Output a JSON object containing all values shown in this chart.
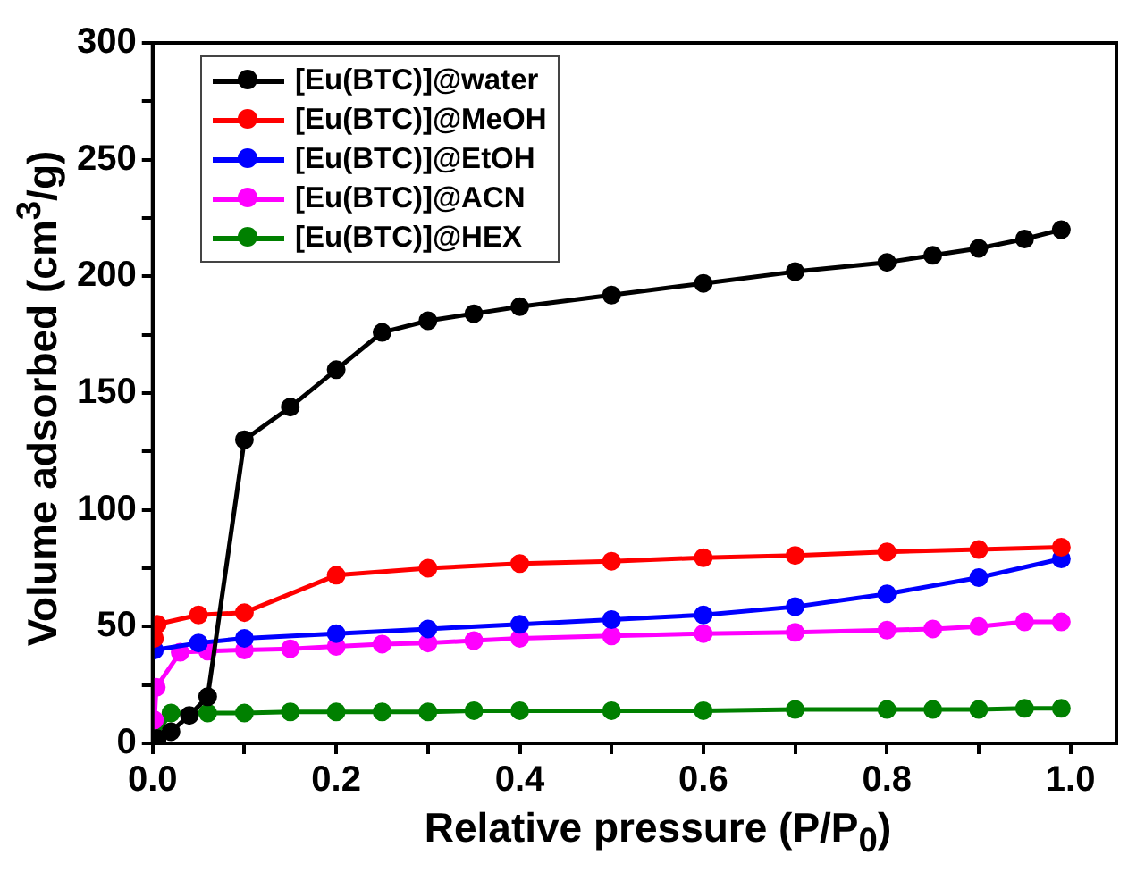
{
  "chart_data": {
    "type": "line",
    "xlabel": "Relative pressure (P/P$_{0}$)",
    "ylabel": "Volume adsorbed (cm$^{3}$/g)",
    "xlim": [
      0,
      1.05
    ],
    "ylim": [
      0,
      300
    ],
    "xticks": [
      {
        "value": 0,
        "label": "0.0"
      },
      {
        "value": 0.1,
        "label": null
      },
      {
        "value": 0.2,
        "label": "0.2"
      },
      {
        "value": 0.3,
        "label": null
      },
      {
        "value": 0.4,
        "label": "0.4"
      },
      {
        "value": 0.5,
        "label": null
      },
      {
        "value": 0.6,
        "label": "0.6"
      },
      {
        "value": 0.7,
        "label": null
      },
      {
        "value": 0.8,
        "label": "0.8"
      },
      {
        "value": 0.9,
        "label": null
      },
      {
        "value": 1,
        "label": "1.0"
      }
    ],
    "yticks": [
      0,
      {
        "value": 25,
        "label": null
      },
      50,
      {
        "value": 75,
        "label": null
      },
      100,
      {
        "value": 125,
        "label": null
      },
      150,
      {
        "value": 175,
        "label": null
      },
      200,
      {
        "value": 225,
        "label": null
      },
      250,
      {
        "value": 275,
        "label": null
      },
      300
    ],
    "grid": false,
    "legend": "top left",
    "marker": "circle",
    "line_style": "solid",
    "series": [
      {
        "name": "[Eu(BTC)]@water",
        "color": "#000000",
        "x": [
          0.005,
          0.02,
          0.04,
          0.06,
          0.1,
          0.15,
          0.2,
          0.25,
          0.3,
          0.35,
          0.4,
          0.5,
          0.6,
          0.7,
          0.8,
          0.85,
          0.9,
          0.95,
          0.99
        ],
        "values": [
          2,
          5,
          12,
          20,
          130,
          144,
          160,
          176,
          181,
          184,
          187,
          192,
          197,
          202,
          206,
          209,
          212,
          216,
          220
        ]
      },
      {
        "name": "[Eu(BTC)]@MeOH",
        "color": "#ff0000",
        "x": [
          0.002,
          0.005,
          0.05,
          0.1,
          0.2,
          0.3,
          0.4,
          0.5,
          0.6,
          0.7,
          0.8,
          0.9,
          0.99
        ],
        "values": [
          45,
          51,
          55,
          56,
          72,
          75,
          77,
          78,
          79.5,
          80.5,
          82,
          83,
          84
        ]
      },
      {
        "name": "[Eu(BTC)]@EtOH",
        "color": "#0000ff",
        "x": [
          0.002,
          0.05,
          0.1,
          0.2,
          0.3,
          0.4,
          0.5,
          0.6,
          0.7,
          0.8,
          0.9,
          0.99
        ],
        "values": [
          40,
          43,
          45,
          47,
          49,
          51,
          53,
          55,
          58.5,
          64,
          71,
          79
        ]
      },
      {
        "name": "[Eu(BTC)]@ACN",
        "color": "#ff00ff",
        "x": [
          0.002,
          0.004,
          0.03,
          0.06,
          0.1,
          0.15,
          0.2,
          0.25,
          0.3,
          0.35,
          0.4,
          0.5,
          0.6,
          0.7,
          0.8,
          0.85,
          0.9,
          0.95,
          0.99
        ],
        "values": [
          10,
          24,
          39,
          39.5,
          40,
          40.5,
          41.5,
          42.5,
          43,
          44,
          45,
          46,
          47,
          47.5,
          48.5,
          49,
          50,
          52,
          52
        ]
      },
      {
        "name": "[Eu(BTC)]@HEX",
        "color": "#008000",
        "x": [
          0.002,
          0.02,
          0.06,
          0.1,
          0.15,
          0.2,
          0.25,
          0.3,
          0.35,
          0.4,
          0.5,
          0.6,
          0.7,
          0.8,
          0.85,
          0.9,
          0.95,
          0.99
        ],
        "values": [
          3,
          13,
          13,
          13,
          13.5,
          13.5,
          13.5,
          13.5,
          14,
          14,
          14,
          14,
          14.5,
          14.5,
          14.5,
          14.5,
          15,
          15
        ]
      }
    ]
  }
}
